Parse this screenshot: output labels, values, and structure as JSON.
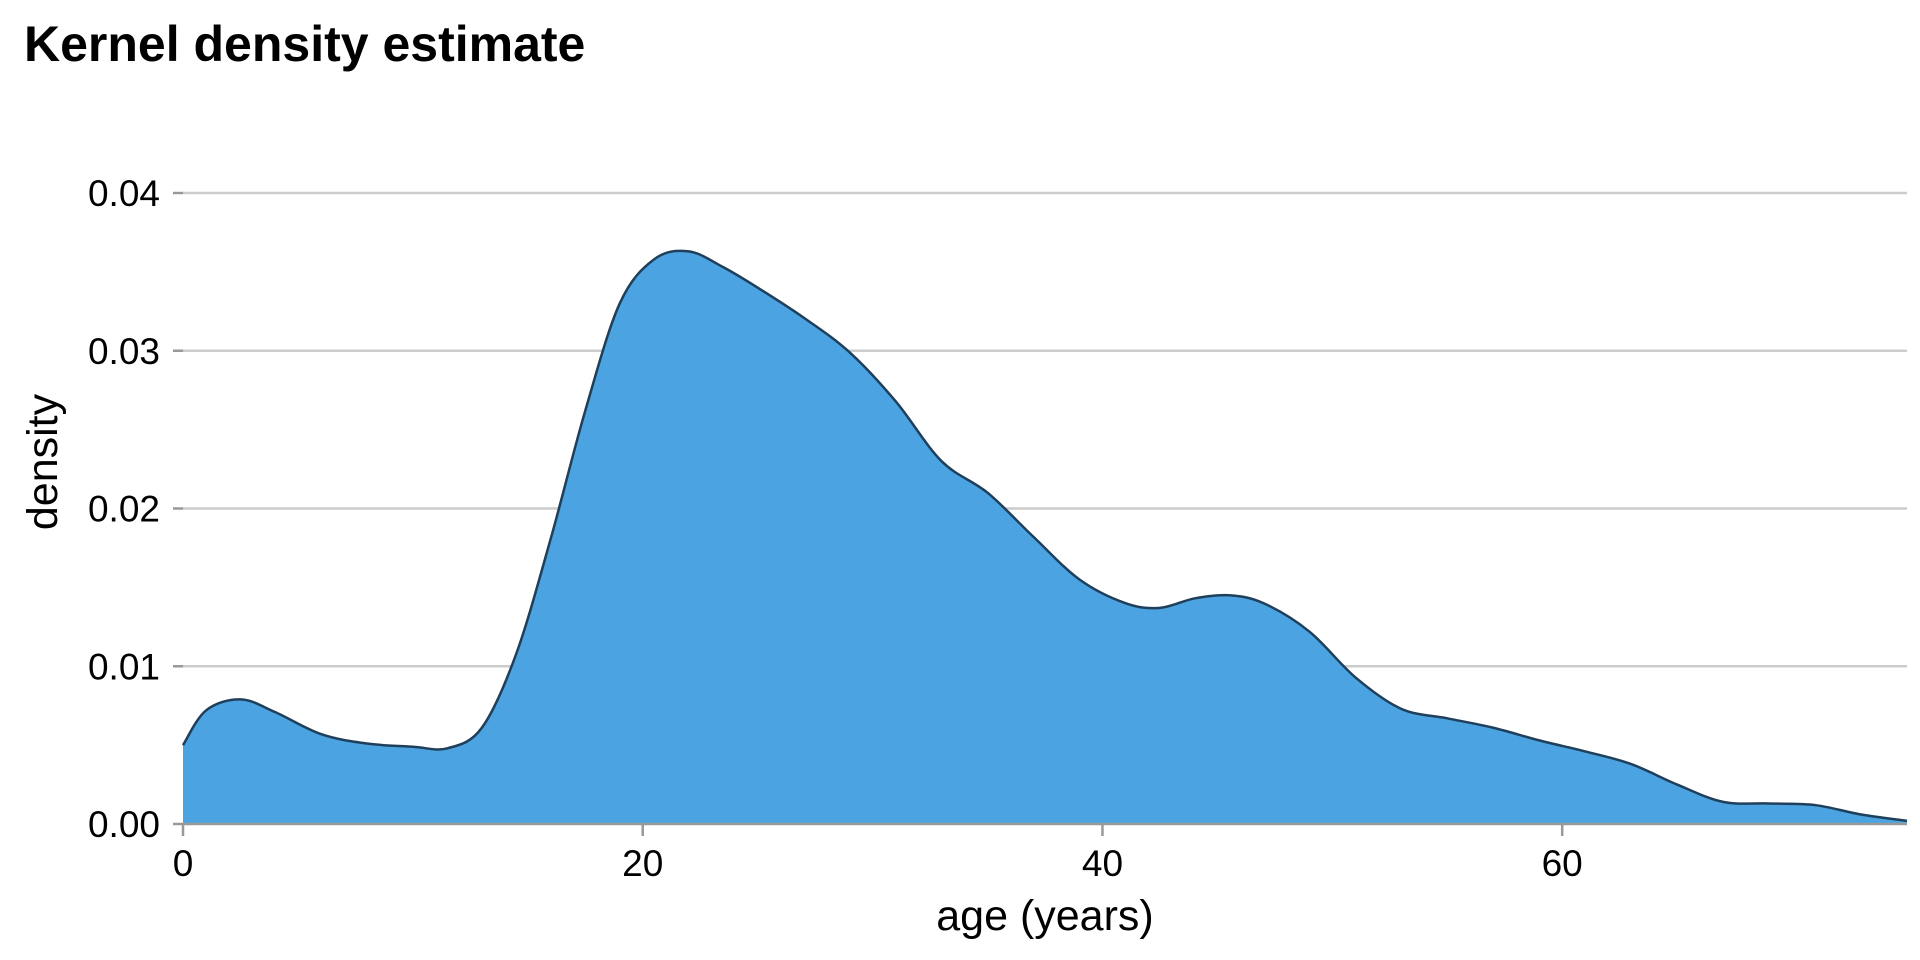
{
  "chart_data": {
    "type": "area",
    "title": "Kernel density estimate",
    "xlabel": "age (years)",
    "ylabel": "density",
    "xlim": [
      0,
      75
    ],
    "ylim": [
      0,
      0.04
    ],
    "grid": "horizontal",
    "legend": "none",
    "fill_color": "#4ba4e1",
    "line_color": "#1f3f5a",
    "grid_color": "#cccccc",
    "x_ticks": [
      {
        "value": 0,
        "label": "0"
      },
      {
        "value": 20,
        "label": "20"
      },
      {
        "value": 40,
        "label": "40"
      },
      {
        "value": 60,
        "label": "60"
      }
    ],
    "y_ticks": [
      {
        "value": 0,
        "label": "0.00"
      },
      {
        "value": 0.01,
        "label": "0.01"
      },
      {
        "value": 0.02,
        "label": "0.02"
      },
      {
        "value": 0.03,
        "label": "0.03"
      },
      {
        "value": 0.04,
        "label": "0.04"
      }
    ],
    "series": [
      {
        "x": [
          0,
          1,
          2.5,
          4,
          6,
          8,
          10,
          11.5,
          13,
          14.5,
          16,
          17.5,
          19,
          20.5,
          22,
          23.5,
          25,
          27,
          29,
          31,
          33,
          35,
          37,
          39,
          41,
          42.5,
          44,
          45.5,
          47,
          49,
          51,
          53,
          55,
          57,
          59,
          61,
          63,
          65,
          67,
          69,
          71,
          73,
          75
        ],
        "y": [
          0.005,
          0.0072,
          0.0079,
          0.0071,
          0.0057,
          0.0051,
          0.0049,
          0.0048,
          0.0061,
          0.0108,
          0.0181,
          0.0262,
          0.033,
          0.0358,
          0.0363,
          0.0353,
          0.034,
          0.0321,
          0.0299,
          0.0268,
          0.023,
          0.021,
          0.0182,
          0.0155,
          0.014,
          0.0137,
          0.0143,
          0.0145,
          0.014,
          0.0122,
          0.0093,
          0.0073,
          0.0067,
          0.0061,
          0.0053,
          0.0046,
          0.0038,
          0.0025,
          0.0014,
          0.0013,
          0.0012,
          0.0006,
          0.0002
        ]
      }
    ]
  }
}
